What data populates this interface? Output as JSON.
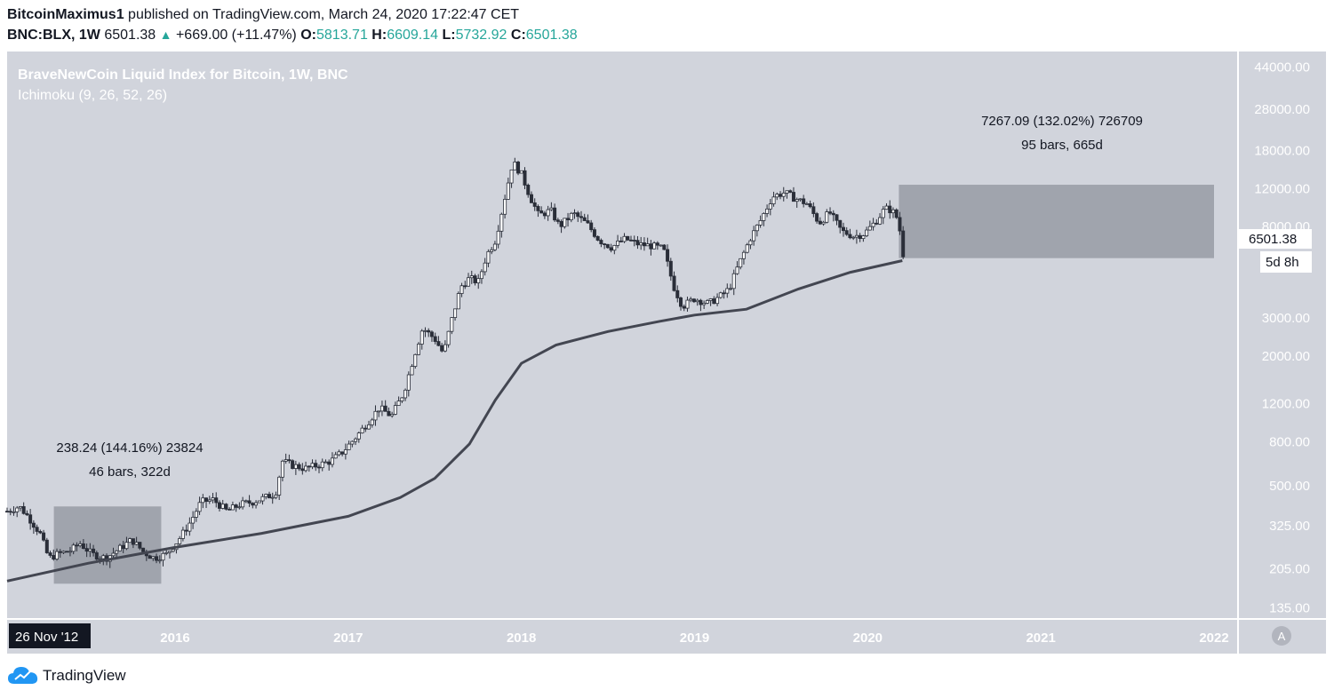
{
  "header": {
    "author": "BitcoinMaximus1",
    "published_text": "published on TradingView.com, March 24, 2020 17:22:47 CET",
    "symbol": "BNC:BLX, 1W",
    "last": "6501.38",
    "change": "+669.00 (+11.47%)",
    "o_label": "O:",
    "o_value": "5813.71",
    "h_label": "H:",
    "h_value": "6609.14",
    "l_label": "L:",
    "l_value": "5732.92",
    "c_label": "C:",
    "c_value": "6501.38"
  },
  "chart_data": {
    "type": "candlestick",
    "title": "BraveNewCoin Liquid Index for Bitcoin, 1W, BNC",
    "indicator": "Ichimoku (9, 26, 52, 26)",
    "y_scale": "log",
    "ylim": [
      120,
      52000
    ],
    "y_ticks": [
      135,
      205,
      325,
      500,
      800,
      1200,
      2000,
      3000,
      8000,
      12000,
      18000,
      28000,
      44000
    ],
    "y_tick_labels": [
      "135.00",
      "205.00",
      "325.00",
      "500.00",
      "800.00",
      "1200.00",
      "2000.00",
      "3000.00",
      "8000.00",
      "12000.00",
      "18000.00",
      "28000.00",
      "44000.00"
    ],
    "x_tick_labels": [
      "2016",
      "2017",
      "2018",
      "2019",
      "2020",
      "2021",
      "2022"
    ],
    "x_ticks_year": [
      2016,
      2017,
      2018,
      2019,
      2020,
      2021,
      2022
    ],
    "xlim": [
      2015.03,
      2022.0
    ],
    "price_path": [
      [
        2015.03,
        380
      ],
      [
        2015.1,
        400
      ],
      [
        2015.15,
        360
      ],
      [
        2015.22,
        300
      ],
      [
        2015.27,
        230
      ],
      [
        2015.32,
        240
      ],
      [
        2015.4,
        250
      ],
      [
        2015.45,
        270
      ],
      [
        2015.52,
        240
      ],
      [
        2015.6,
        230
      ],
      [
        2015.68,
        255
      ],
      [
        2015.75,
        280
      ],
      [
        2015.82,
        245
      ],
      [
        2015.88,
        230
      ],
      [
        2015.95,
        240
      ],
      [
        2016.02,
        280
      ],
      [
        2016.08,
        330
      ],
      [
        2016.15,
        420
      ],
      [
        2016.22,
        430
      ],
      [
        2016.3,
        380
      ],
      [
        2016.38,
        410
      ],
      [
        2016.45,
        420
      ],
      [
        2016.52,
        440
      ],
      [
        2016.58,
        460
      ],
      [
        2016.62,
        650
      ],
      [
        2016.68,
        620
      ],
      [
        2016.75,
        600
      ],
      [
        2016.82,
        620
      ],
      [
        2016.9,
        650
      ],
      [
        2016.97,
        720
      ],
      [
        2017.05,
        850
      ],
      [
        2017.12,
        1000
      ],
      [
        2017.18,
        1150
      ],
      [
        2017.25,
        1050
      ],
      [
        2017.32,
        1350
      ],
      [
        2017.38,
        2000
      ],
      [
        2017.43,
        2700
      ],
      [
        2017.5,
        2400
      ],
      [
        2017.55,
        2050
      ],
      [
        2017.6,
        3000
      ],
      [
        2017.65,
        4200
      ],
      [
        2017.7,
        4600
      ],
      [
        2017.75,
        4400
      ],
      [
        2017.8,
        5900
      ],
      [
        2017.85,
        6900
      ],
      [
        2017.9,
        10500
      ],
      [
        2017.95,
        16000
      ],
      [
        2018.0,
        14000
      ],
      [
        2018.05,
        11000
      ],
      [
        2018.1,
        9000
      ],
      [
        2018.17,
        9500
      ],
      [
        2018.22,
        8000
      ],
      [
        2018.3,
        9200
      ],
      [
        2018.38,
        8200
      ],
      [
        2018.45,
        6900
      ],
      [
        2018.52,
        6400
      ],
      [
        2018.6,
        7000
      ],
      [
        2018.68,
        6600
      ],
      [
        2018.75,
        6500
      ],
      [
        2018.82,
        6300
      ],
      [
        2018.88,
        4200
      ],
      [
        2018.93,
        3400
      ],
      [
        2019.0,
        3700
      ],
      [
        2019.08,
        3500
      ],
      [
        2019.15,
        3800
      ],
      [
        2019.2,
        4100
      ],
      [
        2019.25,
        5200
      ],
      [
        2019.32,
        7000
      ],
      [
        2019.38,
        8500
      ],
      [
        2019.45,
        11000
      ],
      [
        2019.52,
        11500
      ],
      [
        2019.58,
        10800
      ],
      [
        2019.65,
        10200
      ],
      [
        2019.72,
        8300
      ],
      [
        2019.78,
        9300
      ],
      [
        2019.85,
        7600
      ],
      [
        2019.92,
        7200
      ],
      [
        2019.98,
        7400
      ],
      [
        2020.05,
        8500
      ],
      [
        2020.1,
        9700
      ],
      [
        2020.14,
        9500
      ],
      [
        2020.18,
        8500
      ],
      [
        2020.2,
        5800
      ],
      [
        2020.22,
        6501
      ]
    ],
    "ma_path": [
      [
        2015.03,
        180
      ],
      [
        2015.5,
        218
      ],
      [
        2016.0,
        258
      ],
      [
        2016.5,
        300
      ],
      [
        2017.0,
        360
      ],
      [
        2017.3,
        440
      ],
      [
        2017.5,
        540
      ],
      [
        2017.7,
        780
      ],
      [
        2017.85,
        1250
      ],
      [
        2018.0,
        1850
      ],
      [
        2018.2,
        2250
      ],
      [
        2018.5,
        2600
      ],
      [
        2018.8,
        2900
      ],
      [
        2019.0,
        3100
      ],
      [
        2019.3,
        3300
      ],
      [
        2019.6,
        4100
      ],
      [
        2019.9,
        4900
      ],
      [
        2020.2,
        5550
      ]
    ],
    "annotations": [
      {
        "line1": "238.24 (144.16%) 23824",
        "line2": "46 bars, 322d"
      },
      {
        "line1": "7267.09 (132.02%) 726709",
        "line2": "95 bars, 665d"
      }
    ],
    "measure_boxes": [
      {
        "x_from": 2015.3,
        "x_to": 2015.92,
        "y_from": 175,
        "y_to": 400
      },
      {
        "x_from": 2020.18,
        "x_to": 2022.0,
        "y_from": 5700,
        "y_to": 12500
      }
    ],
    "price_label": "6501.38",
    "countdown_label": "5d 8h",
    "date_label": "26 Nov '12",
    "scale_mode_button": "A"
  },
  "colors": {
    "background": "#d1d4dc",
    "axis_bg": "#ffffff",
    "candle": "#2a2e39",
    "ma_line": "#434651",
    "measure_box": "#787b86",
    "up": "#26a69a"
  },
  "footer": {
    "brand": "TradingView"
  }
}
